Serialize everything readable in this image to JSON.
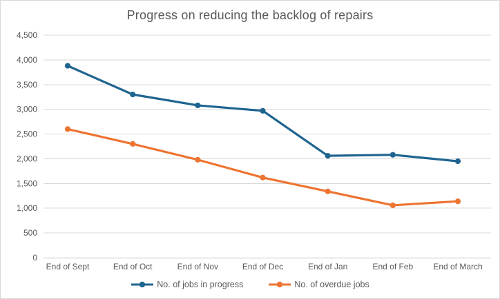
{
  "page": {
    "background": "#ffffff",
    "border_color": "#d9d9d9"
  },
  "chart_data": {
    "type": "line",
    "title": "Progress on reducing the backlog of repairs",
    "categories": [
      "End of Sept",
      "End of Oct",
      "End of Nov",
      "End of Dec",
      "End of Jan",
      "End of Feb",
      "End of March"
    ],
    "series": [
      {
        "name": "No. of jobs in progress",
        "color": "#1f6490",
        "values": [
          3880,
          3300,
          3080,
          2970,
          2060,
          2080,
          1950
        ]
      },
      {
        "name": "No. of overdue jobs",
        "color": "#ed7431",
        "values": [
          2600,
          2300,
          1980,
          1620,
          1340,
          1060,
          1140
        ]
      }
    ],
    "xlabel": "",
    "ylabel": "",
    "ylim": [
      0,
      4500
    ],
    "y_tick_step": 500,
    "y_tick_labels": [
      "0",
      "500",
      "1,000",
      "1,500",
      "2,000",
      "2,500",
      "3,000",
      "3,500",
      "4,000",
      "4,500"
    ],
    "grid": "horizontal",
    "legend_position": "bottom",
    "text_color": "#595959",
    "gridline_color": "#d9d9d9",
    "axis_line_color": "#bfbfbf"
  }
}
